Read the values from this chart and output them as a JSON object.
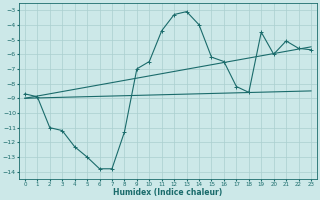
{
  "xlabel": "Humidex (Indice chaleur)",
  "xlim": [
    -0.5,
    23.5
  ],
  "ylim": [
    -14.5,
    -2.5
  ],
  "yticks": [
    -3,
    -4,
    -5,
    -6,
    -7,
    -8,
    -9,
    -10,
    -11,
    -12,
    -13,
    -14
  ],
  "xticks": [
    0,
    1,
    2,
    3,
    4,
    5,
    6,
    7,
    8,
    9,
    10,
    11,
    12,
    13,
    14,
    15,
    16,
    17,
    18,
    19,
    20,
    21,
    22,
    23
  ],
  "background_color": "#cce8e8",
  "grid_color": "#aacfcf",
  "line_color": "#1a6b6b",
  "series_zigzag": {
    "x": [
      0,
      1,
      2,
      3,
      4,
      5,
      6,
      7,
      8,
      9,
      10,
      11,
      12,
      13,
      14,
      15,
      16,
      17,
      18,
      19,
      20,
      21,
      22,
      23
    ],
    "y": [
      -8.7,
      -8.9,
      -11.0,
      -11.2,
      -12.3,
      -13.0,
      -13.8,
      -13.8,
      -11.3,
      -7.0,
      -6.5,
      -4.4,
      -3.3,
      -3.1,
      -4.0,
      -6.2,
      -6.5,
      -8.2,
      -8.6,
      -4.5,
      -6.0,
      -5.1,
      -5.6,
      -5.7
    ]
  },
  "series_line1": {
    "x": [
      0,
      23
    ],
    "y": [
      -9.0,
      -5.5
    ]
  },
  "series_line2": {
    "x": [
      0,
      23
    ],
    "y": [
      -9.0,
      -8.5
    ]
  }
}
